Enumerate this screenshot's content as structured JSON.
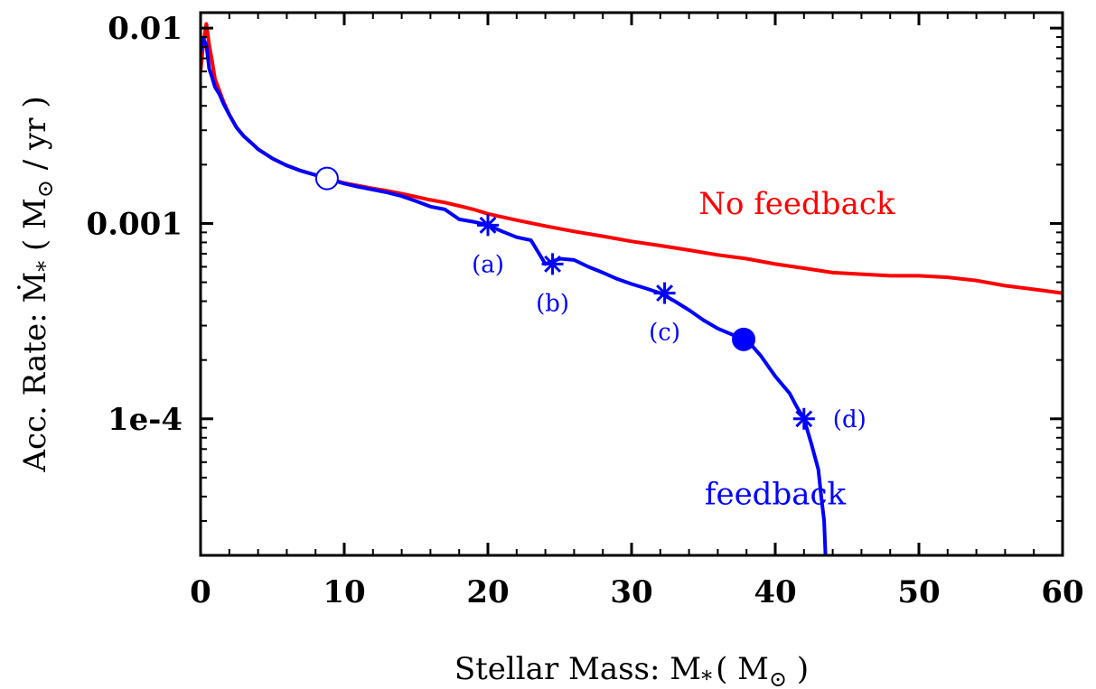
{
  "chart_data": {
    "type": "line",
    "xlabel": "Stellar Mass: M",
    "xlabel_sub": "*",
    "xlabel_unit_open": "( M",
    "xlabel_unit_sub": "⊙",
    "xlabel_unit_close": " )",
    "ylabel": "Acc. Rate: Ṁ",
    "ylabel_sub": "*",
    "ylabel_unit_open": " ( M",
    "ylabel_unit_sub": "⊙",
    "ylabel_unit_close": " / yr )",
    "xlim": [
      0,
      60
    ],
    "ylim": [
      2e-05,
      0.012
    ],
    "yscale": "log",
    "grid": false,
    "x_ticks": [
      0,
      10,
      20,
      30,
      40,
      50,
      60
    ],
    "x_tick_labels": [
      "0",
      "10",
      "20",
      "30",
      "40",
      "50",
      "60"
    ],
    "y_ticks": [
      0.0001,
      0.001,
      0.01
    ],
    "y_tick_labels": [
      "1e-4",
      "0.001",
      "0.01"
    ],
    "series": [
      {
        "name": "No feedback",
        "color": "#ff0000",
        "x": [
          0.0,
          0.2,
          0.4,
          0.6,
          0.8,
          1.0,
          1.3,
          1.6,
          2.0,
          2.5,
          3.0,
          3.5,
          4.0,
          5.0,
          6.0,
          7.0,
          8.0,
          8.8,
          10,
          11,
          12,
          13,
          14,
          15,
          16,
          17,
          18,
          19,
          20,
          22,
          24,
          26,
          28,
          30,
          32,
          34,
          36,
          38,
          40,
          42,
          44,
          46,
          48,
          50,
          52,
          54,
          56,
          58,
          60
        ],
        "y": [
          0.006,
          0.0085,
          0.0105,
          0.0082,
          0.0068,
          0.0055,
          0.0048,
          0.0042,
          0.0036,
          0.0031,
          0.0028,
          0.0026,
          0.0024,
          0.00215,
          0.00198,
          0.00186,
          0.00177,
          0.0017,
          0.00161,
          0.00156,
          0.00151,
          0.00147,
          0.00142,
          0.00137,
          0.00132,
          0.00128,
          0.00123,
          0.00118,
          0.00112,
          0.00104,
          0.00097,
          0.00091,
          0.00086,
          0.00081,
          0.00077,
          0.00073,
          0.00069,
          0.00066,
          0.00062,
          0.00059,
          0.00056,
          0.00055,
          0.00054,
          0.00054,
          0.00053,
          0.00051,
          0.00048,
          0.00046,
          0.00044
        ]
      },
      {
        "name": "feedback",
        "color": "#0000ff",
        "x": [
          0.0,
          0.2,
          0.4,
          0.6,
          0.8,
          1.0,
          1.3,
          1.6,
          2.0,
          2.5,
          3.0,
          3.5,
          4.0,
          5.0,
          6.0,
          7.0,
          8.0,
          8.8,
          10,
          11,
          12,
          13,
          14,
          15,
          16,
          17,
          18,
          19,
          20,
          21,
          22,
          23,
          24,
          24.5,
          25,
          26,
          27,
          28,
          29,
          30,
          31,
          32,
          33,
          34,
          35,
          36,
          37,
          38,
          39,
          40,
          41,
          41.5,
          42,
          42.5,
          43.0,
          43.2,
          43.4,
          43.5
        ],
        "y": [
          0.0075,
          0.0088,
          0.0082,
          0.0062,
          0.0056,
          0.005,
          0.0046,
          0.0041,
          0.0036,
          0.0031,
          0.0028,
          0.0026,
          0.0024,
          0.00215,
          0.00198,
          0.00186,
          0.00177,
          0.0017,
          0.0016,
          0.00154,
          0.00149,
          0.00144,
          0.00138,
          0.0013,
          0.00122,
          0.00118,
          0.00105,
          0.00102,
          0.00098,
          0.00091,
          0.00085,
          0.00082,
          0.00062,
          0.00064,
          0.00066,
          0.00065,
          0.0006,
          0.00056,
          0.00052,
          0.00049,
          0.000465,
          0.00044,
          0.0004,
          0.00036,
          0.00032,
          0.00029,
          0.00027,
          0.000255,
          0.00021,
          0.000165,
          0.000135,
          0.000115,
          0.0001,
          7.5e-05,
          5.5e-05,
          4e-05,
          3e-05,
          2e-05
        ]
      }
    ],
    "series_labels": [
      {
        "text": "No feedback",
        "color": "#ff0000",
        "x": 41.5,
        "y": 0.00112
      },
      {
        "text": "feedback",
        "color": "#0000ff",
        "x": 40,
        "y": 3.65e-05
      }
    ],
    "markers": [
      {
        "label": "(a)",
        "x": 20.0,
        "y": 0.00098,
        "symbol": "asterisk",
        "color": "#0000ff"
      },
      {
        "label": "(b)",
        "x": 24.5,
        "y": 0.00062,
        "symbol": "asterisk",
        "color": "#0000ff"
      },
      {
        "label": "(c)",
        "x": 32.3,
        "y": 0.00044,
        "symbol": "asterisk",
        "color": "#0000ff"
      },
      {
        "label": "(d)",
        "x": 42.0,
        "y": 0.0001,
        "symbol": "asterisk",
        "color": "#0000ff"
      },
      {
        "label": "",
        "x": 8.8,
        "y": 0.0017,
        "symbol": "open-circle",
        "color": "#0000ff"
      },
      {
        "label": "",
        "x": 37.8,
        "y": 0.000255,
        "symbol": "filled-circle",
        "color": "#0000ff"
      }
    ]
  }
}
